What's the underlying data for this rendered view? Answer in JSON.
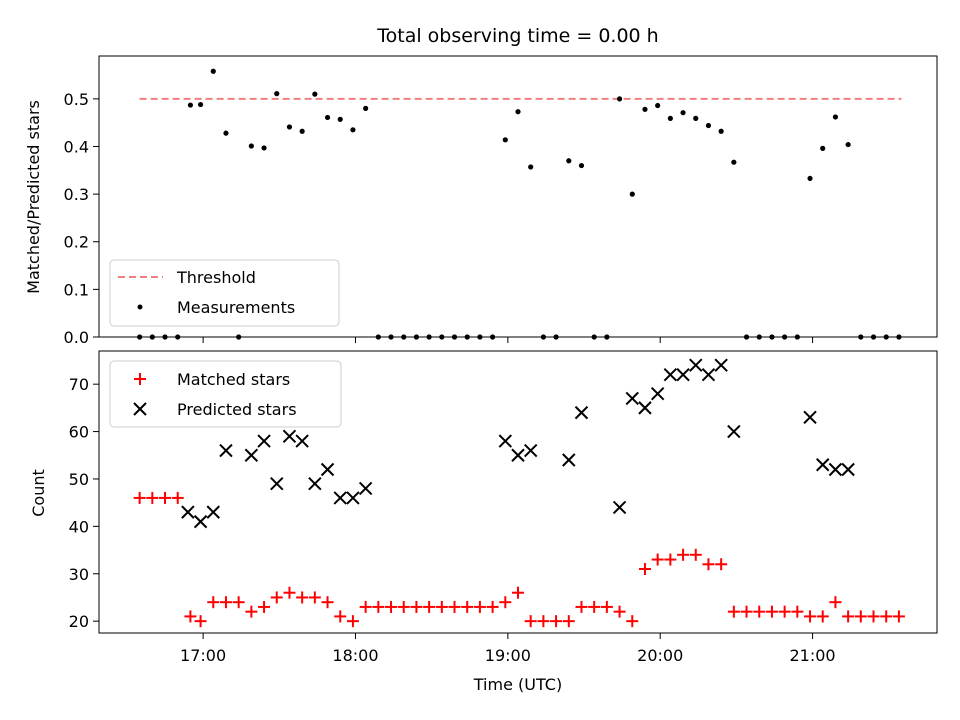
{
  "chart_data": [
    {
      "type": "scatter",
      "title": "Total observing time = 0.00 h",
      "ylabel": "Matched/Predicted stars",
      "xlabel": "",
      "ylim": [
        0,
        0.59
      ],
      "yticks": [
        0.0,
        0.1,
        0.2,
        0.3,
        0.4,
        0.5
      ],
      "ytick_labels": [
        "0.0",
        "0.1",
        "0.2",
        "0.3",
        "0.4",
        "0.5"
      ],
      "xlim": [
        "16:19",
        "21:49"
      ],
      "xticks": [
        "17:00",
        "18:00",
        "19:00",
        "20:00",
        "21:00"
      ],
      "legend_position": "lower-left",
      "threshold": {
        "name": "Threshold",
        "value": 0.5,
        "x_range": [
          "16:35",
          "21:35"
        ],
        "color": "#f08080",
        "style": "dashed"
      },
      "series": [
        {
          "name": "Measurements",
          "marker": "dot",
          "color": "#000000",
          "points": [
            [
              "16:35",
              0
            ],
            [
              "16:40",
              0
            ],
            [
              "16:45",
              0
            ],
            [
              "16:50",
              0
            ],
            [
              "16:55",
              0.487
            ],
            [
              "16:59",
              0.488
            ],
            [
              "17:04",
              0.558
            ],
            [
              "17:09",
              0.428
            ],
            [
              "17:14",
              0
            ],
            [
              "17:19",
              0.401
            ],
            [
              "17:24",
              0.397
            ],
            [
              "17:29",
              0.511
            ],
            [
              "17:34",
              0.441
            ],
            [
              "17:39",
              0.432
            ],
            [
              "17:44",
              0.51
            ],
            [
              "17:49",
              0.461
            ],
            [
              "17:54",
              0.457
            ],
            [
              "17:59",
              0.435
            ],
            [
              "18:04",
              0.48
            ],
            [
              "18:09",
              0
            ],
            [
              "18:14",
              0
            ],
            [
              "18:19",
              0
            ],
            [
              "18:24",
              0
            ],
            [
              "18:29",
              0
            ],
            [
              "18:34",
              0
            ],
            [
              "18:39",
              0
            ],
            [
              "18:44",
              0
            ],
            [
              "18:49",
              0
            ],
            [
              "18:54",
              0
            ],
            [
              "18:59",
              0.414
            ],
            [
              "19:04",
              0.473
            ],
            [
              "19:09",
              0.357
            ],
            [
              "19:14",
              0
            ],
            [
              "19:19",
              0
            ],
            [
              "19:24",
              0.37
            ],
            [
              "19:29",
              0.36
            ],
            [
              "19:34",
              0
            ],
            [
              "19:39",
              0
            ],
            [
              "19:44",
              0.5
            ],
            [
              "19:49",
              0.3
            ],
            [
              "19:54",
              0.478
            ],
            [
              "19:59",
              0.486
            ],
            [
              "20:04",
              0.459
            ],
            [
              "20:09",
              0.471
            ],
            [
              "20:14",
              0.459
            ],
            [
              "20:19",
              0.444
            ],
            [
              "20:24",
              0.432
            ],
            [
              "20:29",
              0.367
            ],
            [
              "20:34",
              0
            ],
            [
              "20:39",
              0
            ],
            [
              "20:44",
              0
            ],
            [
              "20:49",
              0
            ],
            [
              "20:54",
              0
            ],
            [
              "20:59",
              0.333
            ],
            [
              "21:04",
              0.396
            ],
            [
              "21:09",
              0.462
            ],
            [
              "21:14",
              0.404
            ],
            [
              "21:19",
              0
            ],
            [
              "21:24",
              0
            ],
            [
              "21:29",
              0
            ],
            [
              "21:34",
              0
            ]
          ]
        }
      ]
    },
    {
      "type": "scatter",
      "title": "",
      "xlabel": "Time (UTC)",
      "ylabel": "Count",
      "ylim": [
        17.5,
        77
      ],
      "yticks": [
        20,
        30,
        40,
        50,
        60,
        70
      ],
      "ytick_labels": [
        "20",
        "30",
        "40",
        "50",
        "60",
        "70"
      ],
      "xlim": [
        "16:19",
        "21:49"
      ],
      "xticks": [
        "17:00",
        "18:00",
        "19:00",
        "20:00",
        "21:00"
      ],
      "xtick_labels": [
        "17:00",
        "18:00",
        "19:00",
        "20:00",
        "21:00"
      ],
      "legend_position": "upper-left",
      "series": [
        {
          "name": "Matched stars",
          "marker": "plus",
          "color": "#ff0000",
          "points": [
            [
              "16:35",
              46
            ],
            [
              "16:40",
              46
            ],
            [
              "16:45",
              46
            ],
            [
              "16:50",
              46
            ],
            [
              "16:55",
              21
            ],
            [
              "16:59",
              20
            ],
            [
              "17:04",
              24
            ],
            [
              "17:09",
              24
            ],
            [
              "17:14",
              24
            ],
            [
              "17:19",
              22
            ],
            [
              "17:24",
              23
            ],
            [
              "17:29",
              25
            ],
            [
              "17:34",
              26
            ],
            [
              "17:39",
              25
            ],
            [
              "17:44",
              25
            ],
            [
              "17:49",
              24
            ],
            [
              "17:54",
              21
            ],
            [
              "17:59",
              20
            ],
            [
              "18:04",
              23
            ],
            [
              "18:09",
              23
            ],
            [
              "18:14",
              23
            ],
            [
              "18:19",
              23
            ],
            [
              "18:24",
              23
            ],
            [
              "18:29",
              23
            ],
            [
              "18:34",
              23
            ],
            [
              "18:39",
              23
            ],
            [
              "18:44",
              23
            ],
            [
              "18:49",
              23
            ],
            [
              "18:54",
              23
            ],
            [
              "18:59",
              24
            ],
            [
              "19:04",
              26
            ],
            [
              "19:09",
              20
            ],
            [
              "19:14",
              20
            ],
            [
              "19:19",
              20
            ],
            [
              "19:24",
              20
            ],
            [
              "19:29",
              23
            ],
            [
              "19:34",
              23
            ],
            [
              "19:39",
              23
            ],
            [
              "19:44",
              22
            ],
            [
              "19:49",
              20
            ],
            [
              "19:54",
              31
            ],
            [
              "19:59",
              33
            ],
            [
              "20:04",
              33
            ],
            [
              "20:09",
              34
            ],
            [
              "20:14",
              34
            ],
            [
              "20:19",
              32
            ],
            [
              "20:24",
              32
            ],
            [
              "20:29",
              22
            ],
            [
              "20:34",
              22
            ],
            [
              "20:39",
              22
            ],
            [
              "20:44",
              22
            ],
            [
              "20:49",
              22
            ],
            [
              "20:54",
              22
            ],
            [
              "20:59",
              21
            ],
            [
              "21:04",
              21
            ],
            [
              "21:09",
              24
            ],
            [
              "21:14",
              21
            ],
            [
              "21:19",
              21
            ],
            [
              "21:24",
              21
            ],
            [
              "21:29",
              21
            ],
            [
              "21:34",
              21
            ]
          ]
        },
        {
          "name": "Predicted stars",
          "marker": "x",
          "color": "#000000",
          "points": [
            [
              "16:54",
              43
            ],
            [
              "16:59",
              41
            ],
            [
              "17:04",
              43
            ],
            [
              "17:09",
              56
            ],
            [
              "17:19",
              55
            ],
            [
              "17:24",
              58
            ],
            [
              "17:29",
              49
            ],
            [
              "17:34",
              59
            ],
            [
              "17:39",
              58
            ],
            [
              "17:44",
              49
            ],
            [
              "17:49",
              52
            ],
            [
              "17:54",
              46
            ],
            [
              "17:59",
              46
            ],
            [
              "18:04",
              48
            ],
            [
              "18:59",
              58
            ],
            [
              "19:04",
              55
            ],
            [
              "19:09",
              56
            ],
            [
              "19:24",
              54
            ],
            [
              "19:29",
              64
            ],
            [
              "19:44",
              44
            ],
            [
              "19:49",
              67
            ],
            [
              "19:54",
              65
            ],
            [
              "19:59",
              68
            ],
            [
              "20:04",
              72
            ],
            [
              "20:09",
              72
            ],
            [
              "20:14",
              74
            ],
            [
              "20:19",
              72
            ],
            [
              "20:24",
              74
            ],
            [
              "20:29",
              60
            ],
            [
              "20:59",
              63
            ],
            [
              "21:04",
              53
            ],
            [
              "21:09",
              52
            ],
            [
              "21:14",
              52
            ]
          ]
        }
      ]
    }
  ]
}
